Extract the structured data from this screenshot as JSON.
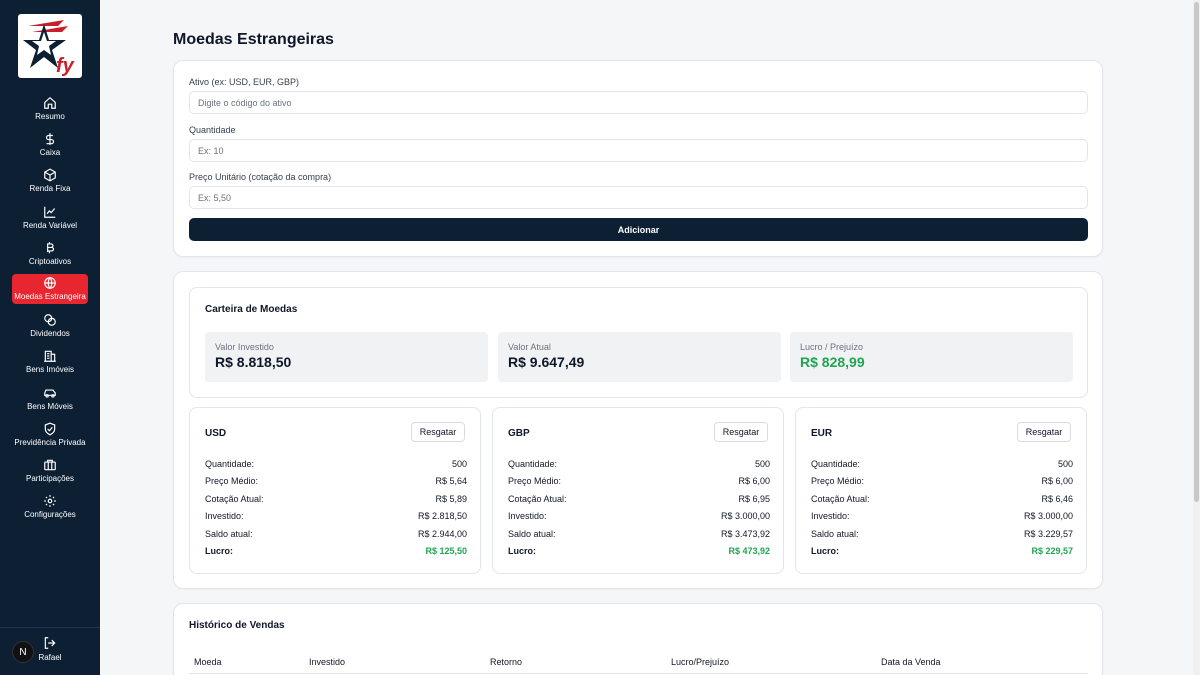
{
  "sidebar": {
    "items": [
      {
        "label": "Resumo",
        "icon": "home-icon"
      },
      {
        "label": "Caixa",
        "icon": "dollar-icon"
      },
      {
        "label": "Renda Fixa",
        "icon": "box-icon"
      },
      {
        "label": "Renda Variável",
        "icon": "chart-line-icon"
      },
      {
        "label": "Criptoativos",
        "icon": "bitcoin-icon"
      },
      {
        "label": "Moedas Estrangeira",
        "icon": "globe-icon",
        "active": true
      },
      {
        "label": "Dividendos",
        "icon": "coins-icon"
      },
      {
        "label": "Bens Imóveis",
        "icon": "building-icon"
      },
      {
        "label": "Bens Móveis",
        "icon": "car-icon"
      },
      {
        "label": "Previdência Privada",
        "icon": "shield-icon"
      },
      {
        "label": "Participações",
        "icon": "briefcase-icon"
      },
      {
        "label": "Configurações",
        "icon": "gear-icon"
      }
    ],
    "user": {
      "initial": "N",
      "name": "Rafael"
    },
    "accent": "#e8262f",
    "bg": "#0c1f33"
  },
  "page": {
    "title": "Moedas Estrangeiras"
  },
  "form": {
    "asset_label": "Ativo (ex: USD, EUR, GBP)",
    "asset_placeholder": "Digite o código do ativo",
    "qty_label": "Quantidade",
    "qty_placeholder": "Ex: 10",
    "price_label": "Preço Unitário (cotação da compra)",
    "price_placeholder": "Ex: 5,50",
    "submit_label": "Adicionar"
  },
  "portfolio": {
    "title": "Carteira de Moedas",
    "invested_label": "Valor Investido",
    "invested_value": "R$ 8.818,50",
    "current_label": "Valor Atual",
    "current_value": "R$ 9.647,49",
    "profit_label": "Lucro / Prejuízo",
    "profit_value": "R$ 828,99"
  },
  "row_labels": {
    "qty": "Quantidade:",
    "avg": "Preço Médio:",
    "quote": "Cotação Atual:",
    "invested": "Investido:",
    "balance": "Saldo atual:",
    "profit": "Lucro:"
  },
  "redeem_label": "Resgatar",
  "currencies": [
    {
      "code": "USD",
      "qty": "500",
      "avg": "R$ 5,64",
      "quote": "R$ 5,89",
      "invested": "R$ 2.818,50",
      "balance": "R$ 2.944,00",
      "profit": "R$ 125,50"
    },
    {
      "code": "GBP",
      "qty": "500",
      "avg": "R$ 6,00",
      "quote": "R$ 6,95",
      "invested": "R$ 3.000,00",
      "balance": "R$ 3.473,92",
      "profit": "R$ 473,92"
    },
    {
      "code": "EUR",
      "qty": "500",
      "avg": "R$ 6,00",
      "quote": "R$ 6,46",
      "invested": "R$ 3.000,00",
      "balance": "R$ 3.229,57",
      "profit": "R$ 229,57"
    }
  ],
  "history": {
    "title": "Histórico de Vendas",
    "columns": [
      "Moeda",
      "Investido",
      "Retorno",
      "Lucro/Prejuízo",
      "Data da Venda"
    ]
  }
}
